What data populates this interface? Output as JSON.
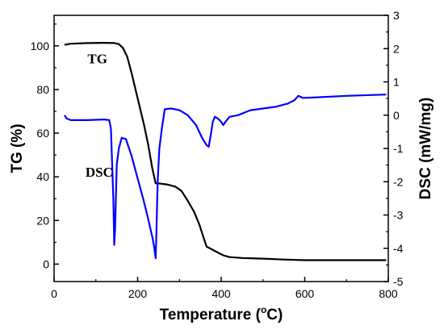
{
  "chart_data": {
    "type": "line",
    "xlabel": "Temperature (°C)",
    "xlabel_parts": {
      "main": "Temperature (",
      "sup": "o",
      "end": "C)"
    },
    "ylabel_left": "TG (%)",
    "ylabel_right": "DSC (mW/mg)",
    "xlim": [
      0,
      800
    ],
    "ylim_left": [
      -8,
      114
    ],
    "ylim_right": [
      -5,
      3
    ],
    "x_ticks": [
      0,
      200,
      400,
      600,
      800
    ],
    "y_ticks_left": [
      0,
      20,
      40,
      60,
      80,
      100
    ],
    "y_ticks_right": [
      -5,
      -4,
      -3,
      -2,
      -1,
      0,
      1,
      2,
      3
    ],
    "grid": false,
    "annotations": [
      {
        "text": "TG",
        "series": "TG",
        "x": 80,
        "y_left": 92
      },
      {
        "text": "DSC",
        "series": "DSC",
        "x": 75,
        "y_left": 40
      }
    ],
    "series": [
      {
        "name": "TG",
        "axis": "left",
        "color": "#000000",
        "points": [
          [
            25,
            100.5
          ],
          [
            40,
            101
          ],
          [
            80,
            101.3
          ],
          [
            120,
            101.4
          ],
          [
            145,
            101.3
          ],
          [
            155,
            100.8
          ],
          [
            165,
            99
          ],
          [
            175,
            95
          ],
          [
            185,
            88
          ],
          [
            195,
            80
          ],
          [
            205,
            72
          ],
          [
            215,
            64
          ],
          [
            225,
            55
          ],
          [
            235,
            44
          ],
          [
            243,
            37
          ],
          [
            250,
            37
          ],
          [
            270,
            36.5
          ],
          [
            290,
            35.5
          ],
          [
            305,
            33.5
          ],
          [
            320,
            29
          ],
          [
            335,
            24
          ],
          [
            348,
            18
          ],
          [
            358,
            12
          ],
          [
            365,
            8
          ],
          [
            375,
            7
          ],
          [
            390,
            5.5
          ],
          [
            405,
            4
          ],
          [
            420,
            3.2
          ],
          [
            450,
            2.8
          ],
          [
            500,
            2.5
          ],
          [
            550,
            2.1
          ],
          [
            600,
            1.8
          ],
          [
            700,
            1.8
          ],
          [
            795,
            1.8
          ]
        ]
      },
      {
        "name": "DSC",
        "axis": "right",
        "color": "#0000ff",
        "points": [
          [
            25,
            0
          ],
          [
            30,
            -0.1
          ],
          [
            40,
            -0.15
          ],
          [
            80,
            -0.15
          ],
          [
            120,
            -0.13
          ],
          [
            132,
            -0.15
          ],
          [
            136,
            -0.4
          ],
          [
            140,
            -1.8
          ],
          [
            142,
            -2.6
          ],
          [
            144,
            -3.9
          ],
          [
            146,
            -3.4
          ],
          [
            150,
            -1.5
          ],
          [
            155,
            -1.0
          ],
          [
            162,
            -0.68
          ],
          [
            172,
            -0.72
          ],
          [
            185,
            -1.2
          ],
          [
            200,
            -1.9
          ],
          [
            215,
            -2.6
          ],
          [
            225,
            -3.1
          ],
          [
            232,
            -3.5
          ],
          [
            236,
            -3.7
          ],
          [
            240,
            -4.0
          ],
          [
            243,
            -4.3
          ],
          [
            245,
            -3.5
          ],
          [
            248,
            -2.0
          ],
          [
            252,
            -1.0
          ],
          [
            258,
            -0.4
          ],
          [
            265,
            0.18
          ],
          [
            280,
            0.2
          ],
          [
            300,
            0.15
          ],
          [
            320,
            0.0
          ],
          [
            340,
            -0.3
          ],
          [
            355,
            -0.7
          ],
          [
            365,
            -0.9
          ],
          [
            370,
            -0.95
          ],
          [
            375,
            -0.6
          ],
          [
            380,
            -0.2
          ],
          [
            385,
            -0.05
          ],
          [
            392,
            -0.1
          ],
          [
            400,
            -0.2
          ],
          [
            405,
            -0.3
          ],
          [
            410,
            -0.2
          ],
          [
            420,
            -0.05
          ],
          [
            440,
            0.0
          ],
          [
            470,
            0.15
          ],
          [
            500,
            0.2
          ],
          [
            530,
            0.25
          ],
          [
            560,
            0.35
          ],
          [
            575,
            0.45
          ],
          [
            585,
            0.58
          ],
          [
            595,
            0.52
          ],
          [
            620,
            0.53
          ],
          [
            700,
            0.58
          ],
          [
            795,
            0.62
          ]
        ]
      }
    ]
  }
}
